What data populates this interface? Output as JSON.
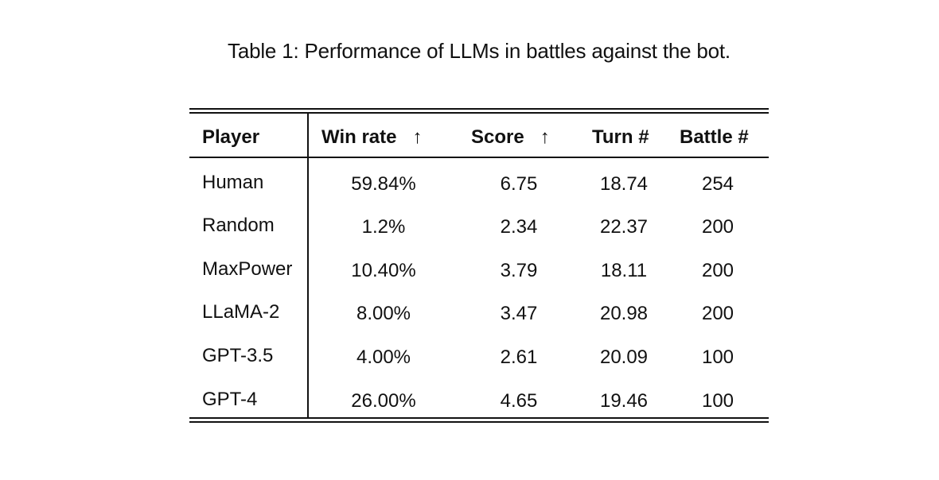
{
  "caption": "Table 1: Performance of LLMs in battles against the bot.",
  "table": {
    "headers": {
      "player": "Player",
      "win_rate": "Win rate",
      "win_rate_arrow": "↑",
      "score": "Score",
      "score_arrow": "↑",
      "turn": "Turn #",
      "battle": "Battle #"
    },
    "rows": [
      {
        "player": "Human",
        "win_rate": "59.84%",
        "score": "6.75",
        "turn": "18.74",
        "battle": "254"
      },
      {
        "player": "Random",
        "win_rate": "1.2%",
        "score": "2.34",
        "turn": "22.37",
        "battle": "200"
      },
      {
        "player": "MaxPower",
        "win_rate": "10.40%",
        "score": "3.79",
        "turn": "18.11",
        "battle": "200"
      },
      {
        "player": "LLaMA-2",
        "win_rate": "8.00%",
        "score": "3.47",
        "turn": "20.98",
        "battle": "200"
      },
      {
        "player": "GPT-3.5",
        "win_rate": "4.00%",
        "score": "2.61",
        "turn": "20.09",
        "battle": "100"
      },
      {
        "player": "GPT-4",
        "win_rate": "26.00%",
        "score": "4.65",
        "turn": "19.46",
        "battle": "100"
      }
    ]
  }
}
